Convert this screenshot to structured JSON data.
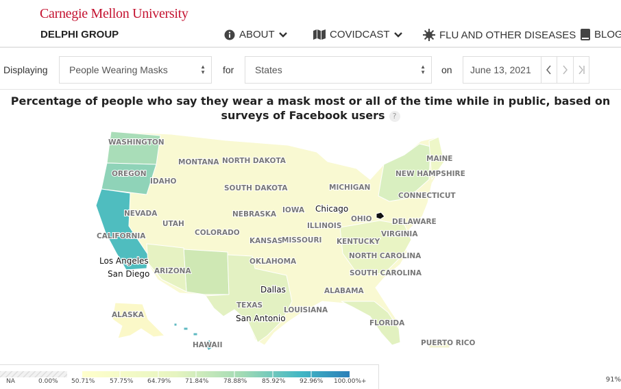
{
  "header": {
    "org": "Carnegie Mellon University",
    "group": "DELPHI GROUP",
    "nav": [
      {
        "label": "ABOUT",
        "icon": "info-icon",
        "dropdown": true
      },
      {
        "label": "COVIDCAST",
        "icon": "map-icon",
        "dropdown": true
      },
      {
        "label": "FLU AND OTHER DISEASES",
        "icon": "virus-icon",
        "dropdown": false
      },
      {
        "label": "BLOG",
        "icon": "book-icon",
        "dropdown": false
      }
    ]
  },
  "controls": {
    "displaying_label": "Displaying",
    "signal_value": "People Wearing Masks",
    "for_label": "for",
    "region_value": "States",
    "on_label": "on",
    "date_value": "June 13, 2021"
  },
  "map": {
    "title": "Percentage of people who say they wear a mask most or all of the time while in public, based on surveys of Facebook users",
    "help": "?",
    "state_labels": [
      "WASHINGTON",
      "OREGON",
      "CALIFORNIA",
      "NEVADA",
      "IDAHO",
      "MONTANA",
      "NORTH DAKOTA",
      "SOUTH DAKOTA",
      "UTAH",
      "ARIZONA",
      "COLORADO",
      "NEBRASKA",
      "KANSAS",
      "OKLAHOMA",
      "TEXAS",
      "IOWA",
      "MISSOURI",
      "ILLINOIS",
      "MICHIGAN",
      "OHIO",
      "KENTUCKY",
      "VIRGINIA",
      "NORTH CAROLINA",
      "SOUTH CAROLINA",
      "ALABAMA",
      "LOUISIANA",
      "FLORIDA",
      "MAINE",
      "NEW HAMPSHIRE",
      "CONNECTICUT",
      "DELAWARE",
      "ALASKA",
      "HAWAII",
      "PUERTO RICO"
    ],
    "city_labels": [
      "Chicago",
      "Los Angeles",
      "San Diego",
      "Dallas",
      "San Antonio"
    ],
    "colors": {
      "low": "#ffffcc",
      "mid": "#7fcdbb",
      "high": "#2c7fb8"
    }
  },
  "legend": {
    "na_label": "NA",
    "ticks": [
      "0.00%",
      "50.71%",
      "57.75%",
      "64.79%",
      "71.84%",
      "78.88%",
      "85.92%",
      "92.96%",
      "100.00%+"
    ]
  },
  "zoom_label": "91%"
}
